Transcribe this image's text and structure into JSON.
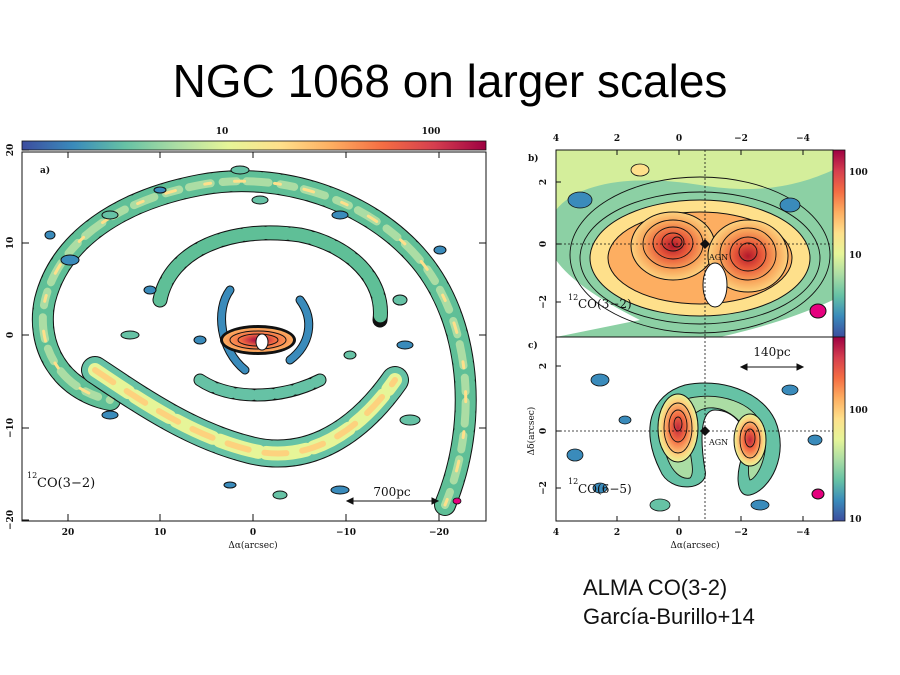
{
  "slide": {
    "title": "NGC 1068 on larger scales"
  },
  "caption": {
    "line1": "ALMA CO(3-2)",
    "line2": "García-Burillo+14"
  },
  "colormap": {
    "stops": [
      "#3d4d9f",
      "#3a8bbb",
      "#66c2a5",
      "#abdda4",
      "#e6f598",
      "#fee08b",
      "#fdae61",
      "#f46d43",
      "#d53e4f",
      "#9e0142"
    ],
    "contour": "#111111",
    "beam": "#e5007e"
  },
  "figure_a": {
    "panel_label": "a)",
    "colorbar_ticks": [
      "10",
      "100"
    ],
    "x_ticks": [
      "20",
      "10",
      "0",
      "−10",
      "−20"
    ],
    "y_ticks": [
      "20",
      "10",
      "0",
      "−10",
      "−20"
    ],
    "xlabel": "Δα(arcsec)",
    "line_label_iso": "12",
    "line_label": "CO(3−2)",
    "scalebar": "700pc"
  },
  "figure_b": {
    "panel_label": "b)",
    "top_x_ticks": [
      "4",
      "2",
      "0",
      "−2",
      "−4"
    ],
    "y_ticks": [
      "2",
      "0",
      "−2"
    ],
    "colorbar_ticks": [
      "100",
      "10"
    ],
    "agn_label": "AGN",
    "line_label_iso": "12",
    "line_label": "CO(3−2)"
  },
  "figure_c": {
    "panel_label": "c)",
    "x_ticks": [
      "4",
      "2",
      "0",
      "−2",
      "−4"
    ],
    "y_ticks": [
      "2",
      "0",
      "−2"
    ],
    "colorbar_ticks": [
      "100",
      "10"
    ],
    "xlabel": "Δα(arcsec)",
    "ylabel": "Δδ(arcsec)",
    "agn_label": "AGN",
    "line_label_iso": "12",
    "line_label": "CO(6−5)",
    "scalebar": "140pc"
  }
}
